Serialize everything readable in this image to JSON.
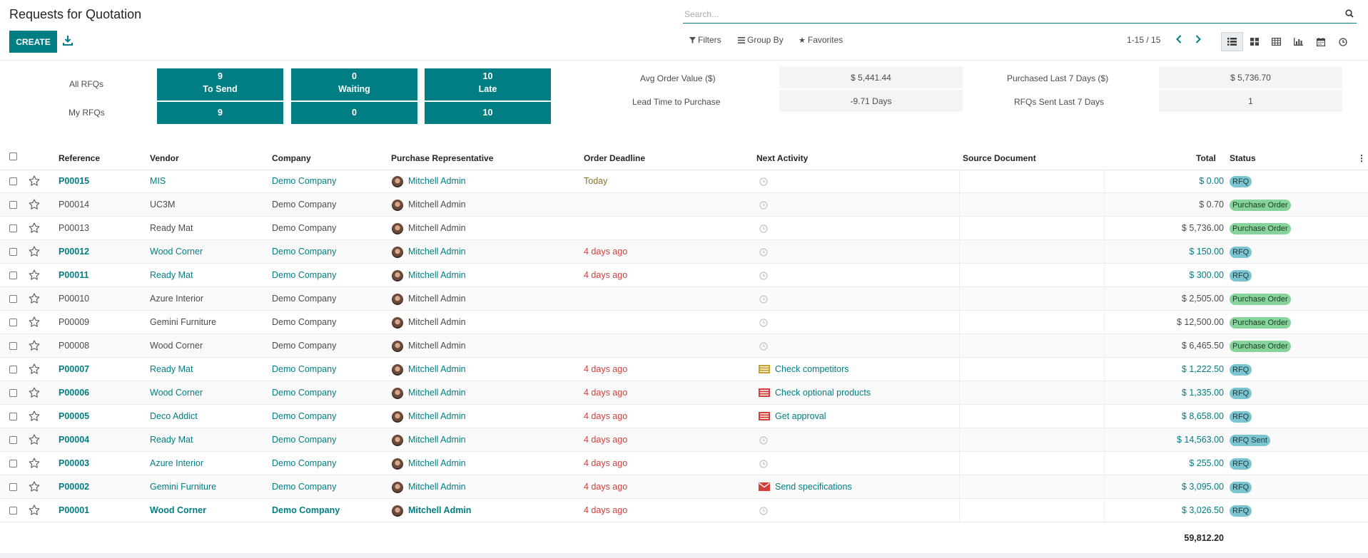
{
  "page_title": "Requests for Quotation",
  "toolbar": {
    "create_label": "CREATE"
  },
  "search": {
    "placeholder": "Search..."
  },
  "filters": {
    "filters_label": "Filters",
    "group_by_label": "Group By",
    "favorites_label": "Favorites"
  },
  "pager": {
    "value": "1-15 / 15"
  },
  "views": [
    "list-view",
    "kanban-view",
    "pivot-view",
    "graph-view",
    "calendar-view",
    "activity-view"
  ],
  "dashboard": {
    "all_rfqs_label": "All RFQs",
    "my_rfqs_label": "My RFQs",
    "tiles": {
      "all_to_send_count": "9",
      "all_to_send_label": "To Send",
      "all_waiting_count": "0",
      "all_waiting_label": "Waiting",
      "all_late_count": "10",
      "all_late_label": "Late",
      "my_to_send_count": "9",
      "my_waiting_count": "0",
      "my_late_count": "10"
    },
    "metrics": {
      "avg_order_label": "Avg Order Value ($)",
      "avg_order_value": "$ 5,441.44",
      "lead_time_label": "Lead Time to Purchase",
      "lead_time_value": "-9.71  Days",
      "purchased_label": "Purchased Last 7 Days ($)",
      "purchased_value": "$ 5,736.70",
      "rfqs_sent_label": "RFQs Sent Last 7 Days",
      "rfqs_sent_value": "1"
    }
  },
  "table": {
    "headers": {
      "reference": "Reference",
      "vendor": "Vendor",
      "company": "Company",
      "rep": "Purchase Representative",
      "deadline": "Order Deadline",
      "activity": "Next Activity",
      "source": "Source Document",
      "total": "Total",
      "status": "Status"
    },
    "rows": [
      {
        "ref": "P00015",
        "vendor": "MIS",
        "company": "Demo Company",
        "rep": "Mitchell Admin",
        "deadline": "Today",
        "activity": "",
        "activity_icon": "clock",
        "total": "$ 0.00",
        "status": "RFQ",
        "style": "link",
        "deadline_style": "today"
      },
      {
        "ref": "P00014",
        "vendor": "UC3M",
        "company": "Demo Company",
        "rep": "Mitchell Admin",
        "deadline": "",
        "activity": "",
        "activity_icon": "clock",
        "total": "$ 0.70",
        "status": "Purchase Order",
        "style": "plain",
        "deadline_style": ""
      },
      {
        "ref": "P00013",
        "vendor": "Ready Mat",
        "company": "Demo Company",
        "rep": "Mitchell Admin",
        "deadline": "",
        "activity": "",
        "activity_icon": "clock",
        "total": "$ 5,736.00",
        "status": "Purchase Order",
        "style": "plain",
        "deadline_style": ""
      },
      {
        "ref": "P00012",
        "vendor": "Wood Corner",
        "company": "Demo Company",
        "rep": "Mitchell Admin",
        "deadline": "4 days ago",
        "activity": "",
        "activity_icon": "clock",
        "total": "$ 150.00",
        "status": "RFQ",
        "style": "link",
        "deadline_style": "red"
      },
      {
        "ref": "P00011",
        "vendor": "Ready Mat",
        "company": "Demo Company",
        "rep": "Mitchell Admin",
        "deadline": "4 days ago",
        "activity": "",
        "activity_icon": "clock",
        "total": "$ 300.00",
        "status": "RFQ",
        "style": "link",
        "deadline_style": "red"
      },
      {
        "ref": "P00010",
        "vendor": "Azure Interior",
        "company": "Demo Company",
        "rep": "Mitchell Admin",
        "deadline": "",
        "activity": "",
        "activity_icon": "clock",
        "total": "$ 2,505.00",
        "status": "Purchase Order",
        "style": "plain",
        "deadline_style": ""
      },
      {
        "ref": "P00009",
        "vendor": "Gemini Furniture",
        "company": "Demo Company",
        "rep": "Mitchell Admin",
        "deadline": "",
        "activity": "",
        "activity_icon": "clock",
        "total": "$ 12,500.00",
        "status": "Purchase Order",
        "style": "plain",
        "deadline_style": ""
      },
      {
        "ref": "P00008",
        "vendor": "Wood Corner",
        "company": "Demo Company",
        "rep": "Mitchell Admin",
        "deadline": "",
        "activity": "",
        "activity_icon": "clock",
        "total": "$ 6,465.50",
        "status": "Purchase Order",
        "style": "plain",
        "deadline_style": ""
      },
      {
        "ref": "P00007",
        "vendor": "Ready Mat",
        "company": "Demo Company",
        "rep": "Mitchell Admin",
        "deadline": "4 days ago",
        "activity": "Check competitors",
        "activity_icon": "list-yellow",
        "total": "$ 1,222.50",
        "status": "RFQ",
        "style": "link",
        "deadline_style": "red"
      },
      {
        "ref": "P00006",
        "vendor": "Wood Corner",
        "company": "Demo Company",
        "rep": "Mitchell Admin",
        "deadline": "4 days ago",
        "activity": "Check optional products",
        "activity_icon": "list-red",
        "total": "$ 1,335.00",
        "status": "RFQ",
        "style": "link",
        "deadline_style": "red"
      },
      {
        "ref": "P00005",
        "vendor": "Deco Addict",
        "company": "Demo Company",
        "rep": "Mitchell Admin",
        "deadline": "4 days ago",
        "activity": "Get approval",
        "activity_icon": "list-red",
        "total": "$ 8,658.00",
        "status": "RFQ",
        "style": "link",
        "deadline_style": "red"
      },
      {
        "ref": "P00004",
        "vendor": "Ready Mat",
        "company": "Demo Company",
        "rep": "Mitchell Admin",
        "deadline": "4 days ago",
        "activity": "",
        "activity_icon": "clock",
        "total": "$ 14,563.00",
        "status": "RFQ Sent",
        "style": "link",
        "deadline_style": "red"
      },
      {
        "ref": "P00003",
        "vendor": "Azure Interior",
        "company": "Demo Company",
        "rep": "Mitchell Admin",
        "deadline": "4 days ago",
        "activity": "",
        "activity_icon": "clock",
        "total": "$ 255.00",
        "status": "RFQ",
        "style": "link",
        "deadline_style": "red"
      },
      {
        "ref": "P00002",
        "vendor": "Gemini Furniture",
        "company": "Demo Company",
        "rep": "Mitchell Admin",
        "deadline": "4 days ago",
        "activity": "Send specifications",
        "activity_icon": "envelope-red",
        "total": "$ 3,095.00",
        "status": "RFQ",
        "style": "link",
        "deadline_style": "red"
      },
      {
        "ref": "P00001",
        "vendor": "Wood Corner",
        "company": "Demo Company",
        "rep": "Mitchell Admin",
        "deadline": "4 days ago",
        "activity": "",
        "activity_icon": "clock",
        "total": "$ 3,026.50",
        "status": "RFQ",
        "style": "linkbold",
        "deadline_style": "red"
      }
    ],
    "footer_total": "59,812.20"
  },
  "colors": {
    "primary": "#017e84",
    "late": "#d23f3a",
    "today": "#8f6f27",
    "rfq_badge": "#7bc4d2",
    "po_badge": "#86d39c"
  }
}
